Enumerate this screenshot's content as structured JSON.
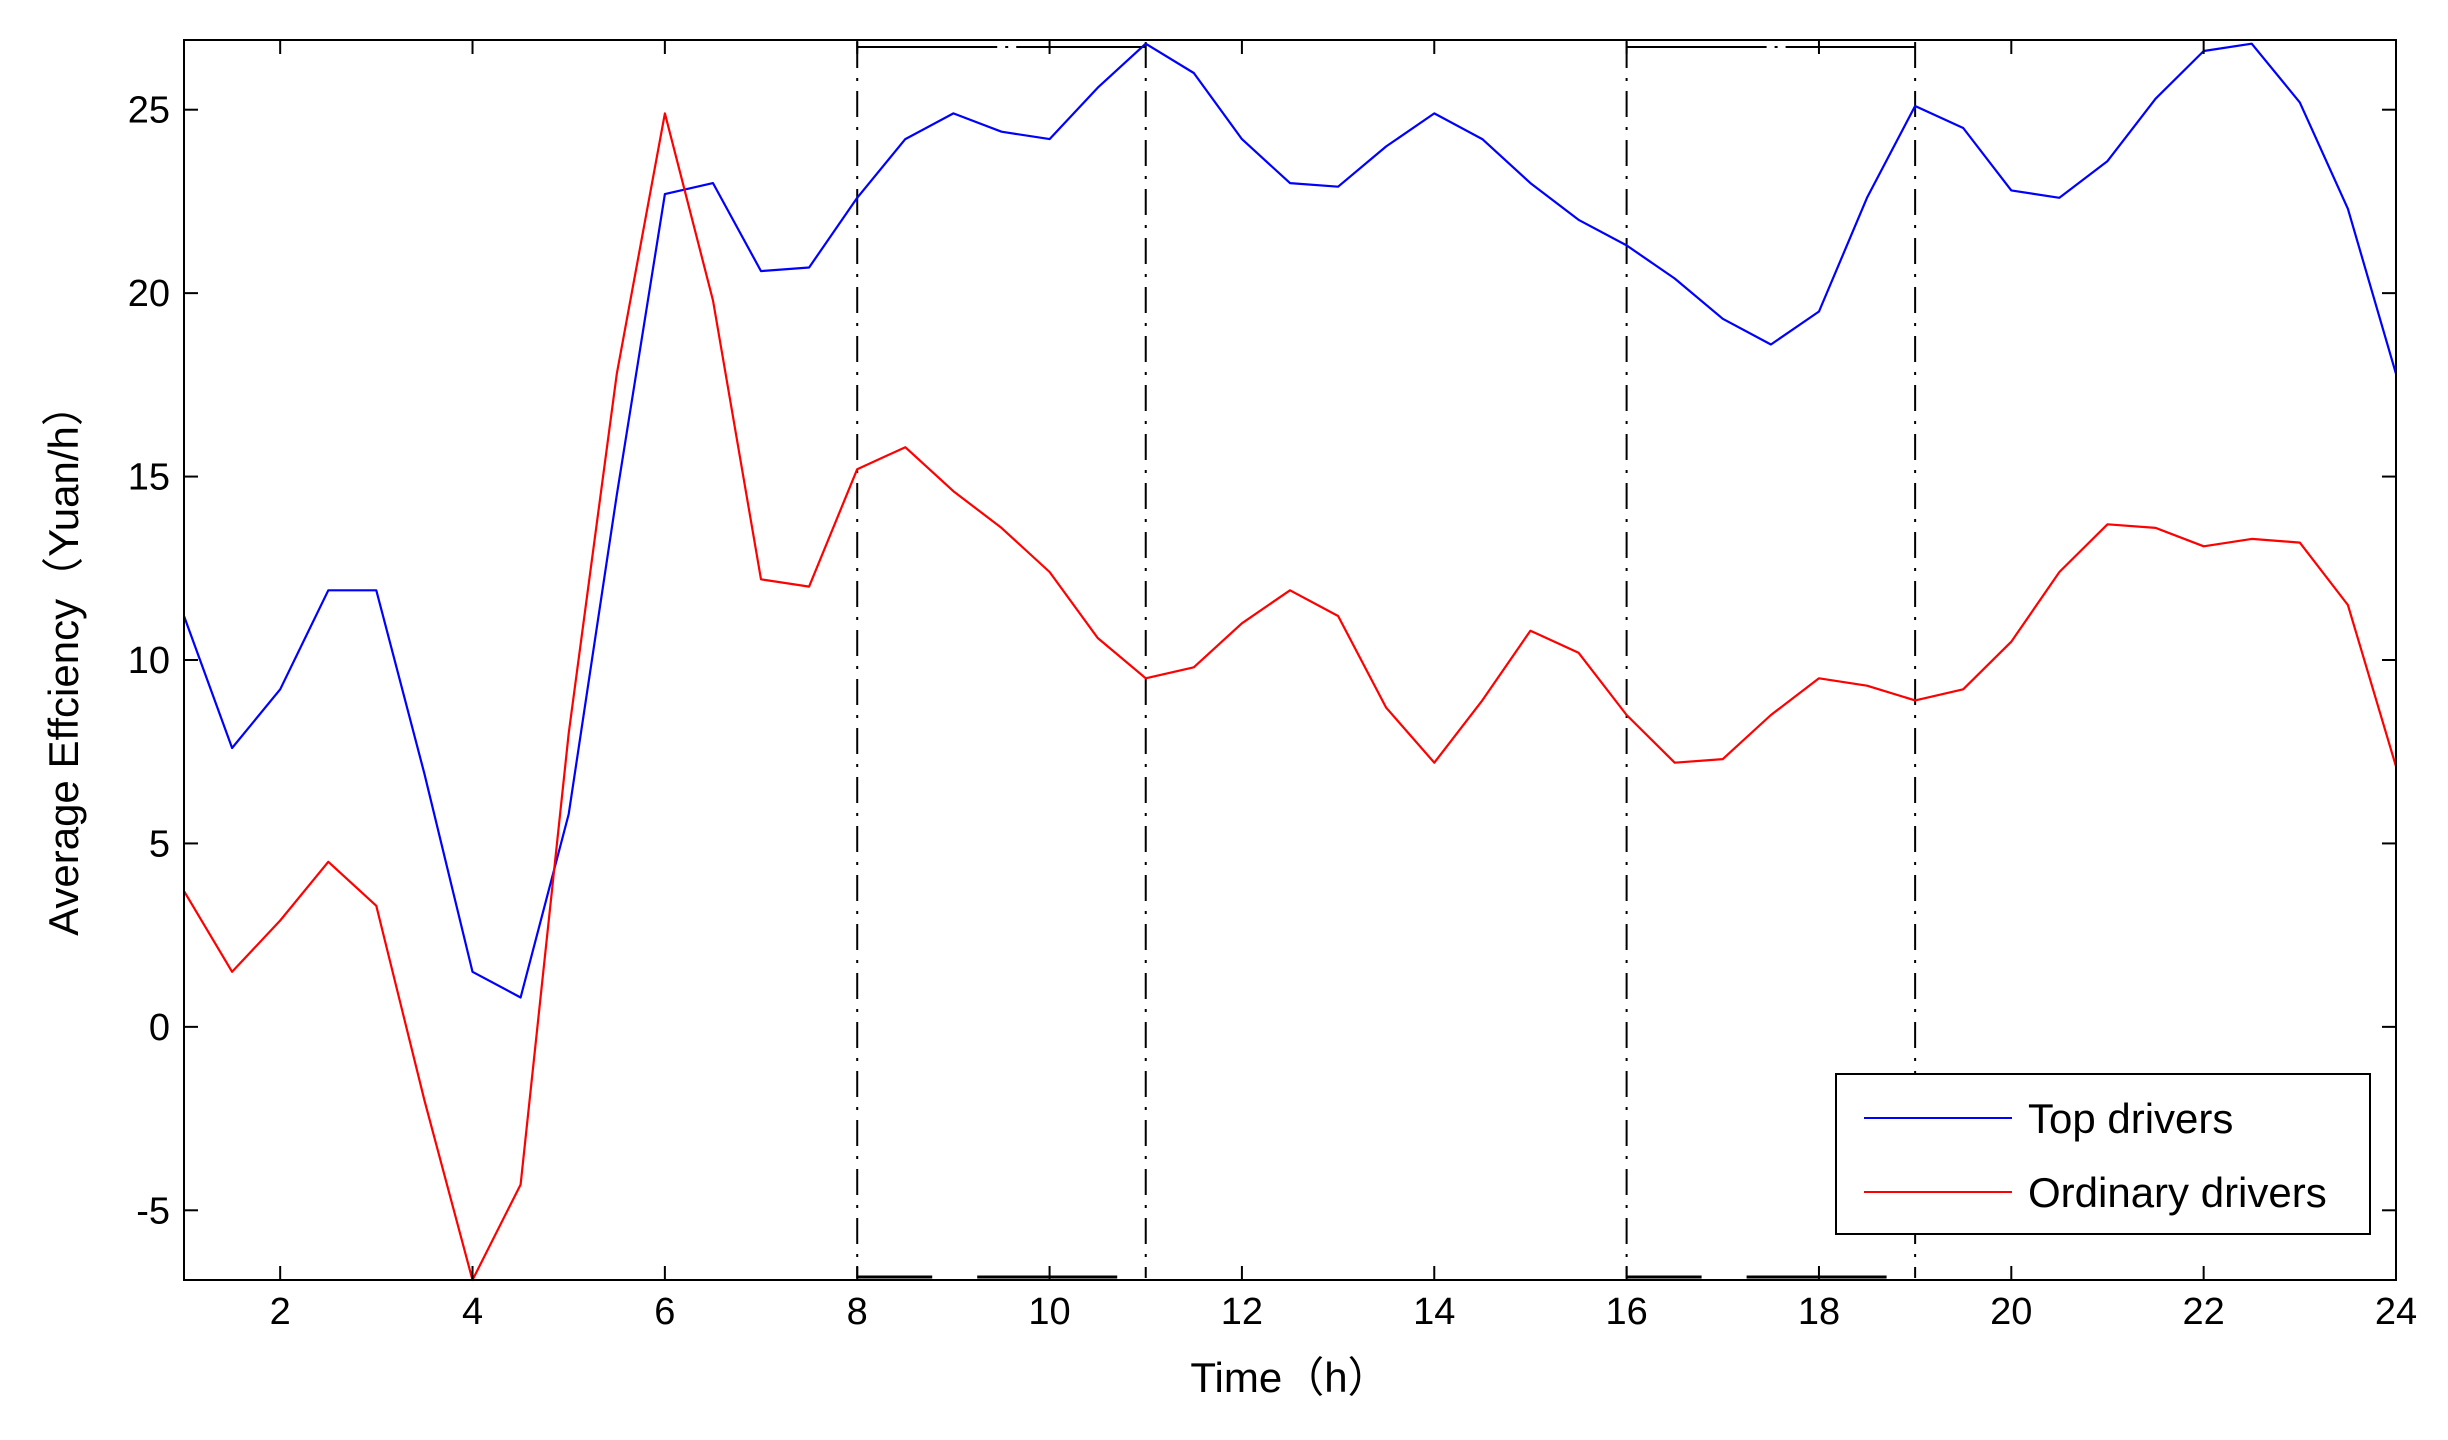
{
  "chart_data": {
    "type": "line",
    "title": "",
    "xlabel": "Time（h）",
    "ylabel": "Average Effciency（Yuan/h）",
    "xlim": [
      1,
      24
    ],
    "ylim": [
      -6.9,
      26.9
    ],
    "x_ticks": [
      2,
      4,
      6,
      8,
      10,
      12,
      14,
      16,
      18,
      20,
      22,
      24
    ],
    "y_ticks": [
      -5,
      0,
      5,
      10,
      15,
      20,
      25
    ],
    "grid": false,
    "legend_position": "bottom-right",
    "x": [
      1,
      1.5,
      2,
      2.5,
      3,
      3.5,
      4,
      4.5,
      5,
      5.5,
      6,
      6.5,
      7,
      7.5,
      8,
      8.5,
      9,
      9.5,
      10,
      10.5,
      11,
      11.5,
      12,
      12.5,
      13,
      13.5,
      14,
      14.5,
      15,
      15.5,
      16,
      16.5,
      17,
      17.5,
      18,
      18.5,
      19,
      19.5,
      20,
      20.5,
      21,
      21.5,
      22,
      22.5,
      23,
      23.5,
      24
    ],
    "series": [
      {
        "name": "Top drivers",
        "color": "#0000ff",
        "values": [
          11.2,
          7.6,
          9.2,
          11.9,
          11.9,
          6.9,
          1.5,
          0.8,
          5.8,
          14.5,
          22.7,
          23.0,
          20.6,
          20.7,
          22.6,
          24.2,
          24.9,
          24.4,
          24.2,
          25.6,
          26.8,
          26.0,
          24.2,
          23.0,
          22.9,
          24.0,
          24.9,
          24.2,
          23.0,
          22.0,
          21.3,
          20.4,
          19.3,
          18.6,
          19.5,
          22.6,
          25.1,
          24.5,
          22.8,
          22.6,
          23.6,
          25.3,
          26.6,
          26.8,
          25.2,
          22.3,
          17.8
        ]
      },
      {
        "name": "Ordinary drivers",
        "color": "#ff0000",
        "values": [
          3.7,
          1.5,
          2.9,
          4.5,
          3.3,
          -2.0,
          -6.9,
          -4.3,
          8.0,
          17.8,
          24.9,
          19.8,
          12.2,
          12.0,
          15.2,
          15.8,
          14.6,
          13.6,
          12.4,
          10.6,
          9.5,
          9.8,
          11.0,
          11.9,
          11.2,
          8.7,
          7.2,
          8.9,
          10.8,
          10.2,
          8.5,
          7.2,
          7.3,
          8.5,
          9.5,
          9.3,
          8.9,
          9.2,
          10.5,
          12.4,
          13.7,
          13.6,
          13.1,
          13.3,
          13.2,
          11.5,
          7.1
        ]
      }
    ],
    "reference_lines": {
      "vertical_x": [
        8,
        11,
        16,
        19
      ],
      "peak_boxes": [
        [
          8,
          11
        ],
        [
          16,
          19
        ]
      ],
      "color": "#000000"
    }
  }
}
